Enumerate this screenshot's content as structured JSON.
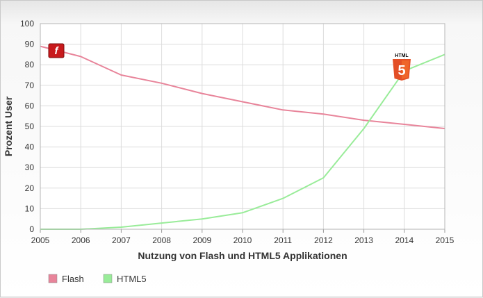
{
  "chart_data": {
    "type": "line",
    "title": "",
    "xlabel": "Nutzung von Flash und HTML5 Applikationen",
    "ylabel": "Prozent User",
    "x": [
      2005,
      2006,
      2007,
      2008,
      2009,
      2010,
      2011,
      2012,
      2013,
      2014,
      2015
    ],
    "xlim": [
      2005,
      2015
    ],
    "ylim": [
      0,
      100
    ],
    "yticks": [
      0,
      10,
      20,
      30,
      40,
      50,
      60,
      70,
      80,
      90,
      100
    ],
    "grid": true,
    "legend_position": "bottom-left",
    "series": [
      {
        "name": "Flash",
        "color": "#e8849a",
        "icon": "flash-logo-icon",
        "values": [
          89,
          84,
          75,
          71,
          66,
          62,
          58,
          56,
          53,
          51,
          49
        ]
      },
      {
        "name": "HTML5",
        "color": "#99ec99",
        "icon": "html5-logo-icon",
        "values": [
          0,
          0,
          1,
          3,
          5,
          8,
          15,
          25,
          49,
          77,
          85
        ]
      }
    ],
    "logos": {
      "flash": {
        "glyph": "f"
      },
      "html5": {
        "label": "HTML",
        "glyph": "5"
      }
    }
  }
}
